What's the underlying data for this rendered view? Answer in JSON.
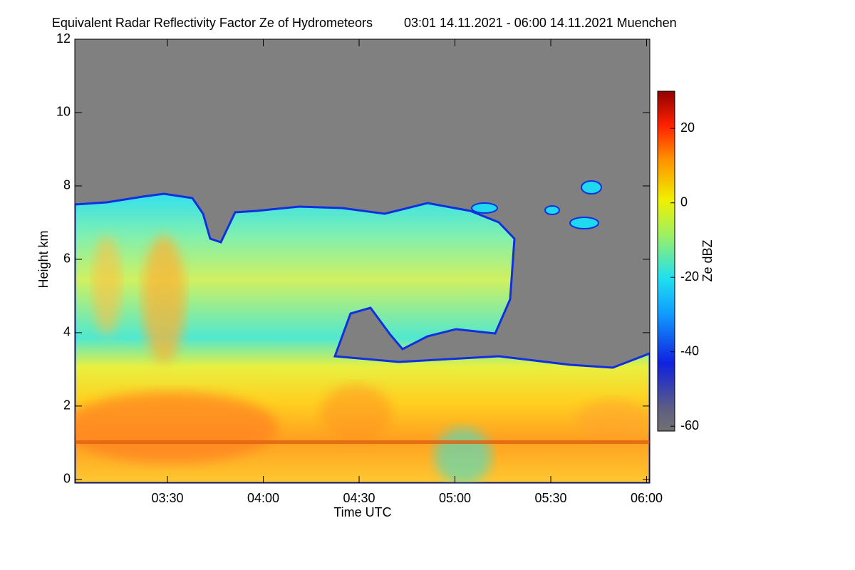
{
  "chart_data": {
    "type": "heatmap",
    "title": "Equivalent Radar Reflectivity Factor Ze of Hydrometeors",
    "subtitle": "03:01 14.11.2021 - 06:00 14.11.2021 Muenchen",
    "x_label": "Time UTC",
    "y_label": "Height km",
    "colorbar_label": "Ze dBZ",
    "xlim": [
      181,
      361
    ],
    "xticks": [
      {
        "value": 210,
        "label": "03:30"
      },
      {
        "value": 240,
        "label": "04:00"
      },
      {
        "value": 270,
        "label": "04:30"
      },
      {
        "value": 300,
        "label": "05:00"
      },
      {
        "value": 330,
        "label": "05:30"
      },
      {
        "value": 360,
        "label": "06:00"
      }
    ],
    "ylim": [
      -0.1,
      12
    ],
    "yticks": [
      0,
      2,
      4,
      6,
      8,
      10,
      12
    ],
    "zlim": [
      -61.3,
      30
    ],
    "zticks": [
      -60,
      -40,
      -20,
      0,
      20
    ],
    "background_color": "#808080"
  }
}
